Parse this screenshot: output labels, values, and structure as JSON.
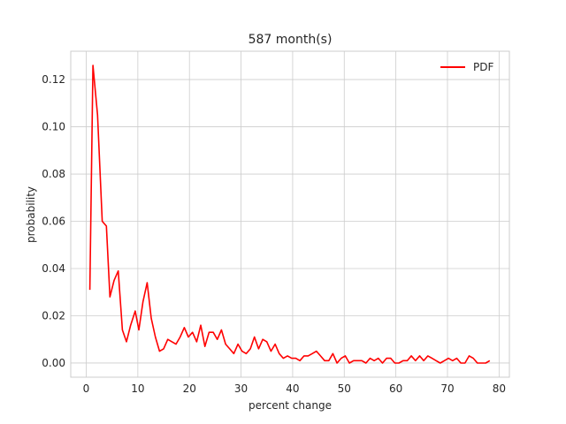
{
  "chart_data": {
    "type": "line",
    "title": "587 month(s)",
    "xlabel": "percent change",
    "ylabel": "probability",
    "xlim": [
      -3,
      82
    ],
    "ylim": [
      -0.006,
      0.132
    ],
    "xticks": [
      0,
      10,
      20,
      30,
      40,
      50,
      60,
      70,
      80
    ],
    "yticks": [
      0.0,
      0.02,
      0.04,
      0.06,
      0.08,
      0.1,
      0.12
    ],
    "ytick_labels": [
      "0.00",
      "0.02",
      "0.04",
      "0.06",
      "0.08",
      "0.10",
      "0.12"
    ],
    "grid": true,
    "legend_position": "top-right",
    "series": [
      {
        "name": "PDF",
        "color": "#ff0000",
        "x": [
          0.7,
          1.3,
          2.2,
          3.1,
          3.9,
          4.6,
          5.4,
          6.2,
          7.0,
          7.8,
          8.6,
          9.5,
          10.2,
          11.0,
          11.8,
          12.6,
          13.4,
          14.2,
          15.0,
          15.8,
          16.6,
          17.4,
          18.2,
          19.0,
          19.8,
          20.6,
          21.4,
          22.2,
          23.0,
          23.8,
          24.6,
          25.4,
          26.2,
          27.0,
          27.8,
          28.6,
          29.4,
          30.2,
          31.0,
          31.8,
          32.6,
          33.4,
          34.2,
          35.0,
          35.8,
          36.6,
          37.4,
          38.2,
          39.0,
          39.8,
          40.6,
          41.4,
          42.2,
          43.0,
          43.8,
          44.6,
          45.4,
          46.2,
          47.0,
          47.8,
          48.6,
          49.4,
          50.2,
          51.0,
          51.8,
          52.6,
          53.4,
          54.2,
          55.0,
          55.8,
          56.6,
          57.4,
          58.2,
          59.0,
          59.8,
          60.6,
          61.4,
          62.2,
          63.0,
          63.8,
          64.6,
          65.4,
          66.2,
          67.0,
          67.8,
          68.6,
          69.4,
          70.2,
          71.0,
          71.8,
          72.6,
          73.4,
          74.2,
          75.0,
          75.8,
          76.6,
          77.4,
          78.2
        ],
        "values": [
          0.031,
          0.126,
          0.105,
          0.06,
          0.058,
          0.028,
          0.035,
          0.039,
          0.014,
          0.009,
          0.016,
          0.022,
          0.014,
          0.026,
          0.034,
          0.019,
          0.011,
          0.005,
          0.006,
          0.01,
          0.009,
          0.008,
          0.011,
          0.015,
          0.011,
          0.013,
          0.009,
          0.016,
          0.007,
          0.013,
          0.013,
          0.01,
          0.014,
          0.008,
          0.006,
          0.004,
          0.008,
          0.005,
          0.004,
          0.006,
          0.011,
          0.006,
          0.01,
          0.009,
          0.005,
          0.008,
          0.004,
          0.002,
          0.003,
          0.002,
          0.002,
          0.001,
          0.003,
          0.003,
          0.004,
          0.005,
          0.003,
          0.001,
          0.001,
          0.004,
          0.0,
          0.002,
          0.003,
          0.0,
          0.001,
          0.001,
          0.001,
          0.0,
          0.002,
          0.001,
          0.002,
          0.0,
          0.002,
          0.002,
          0.0,
          0.0,
          0.001,
          0.001,
          0.003,
          0.001,
          0.003,
          0.001,
          0.003,
          0.002,
          0.001,
          0.0,
          0.001,
          0.002,
          0.001,
          0.002,
          0.0,
          0.0,
          0.003,
          0.002,
          0.0,
          0.0,
          0.0,
          0.001
        ]
      }
    ]
  }
}
